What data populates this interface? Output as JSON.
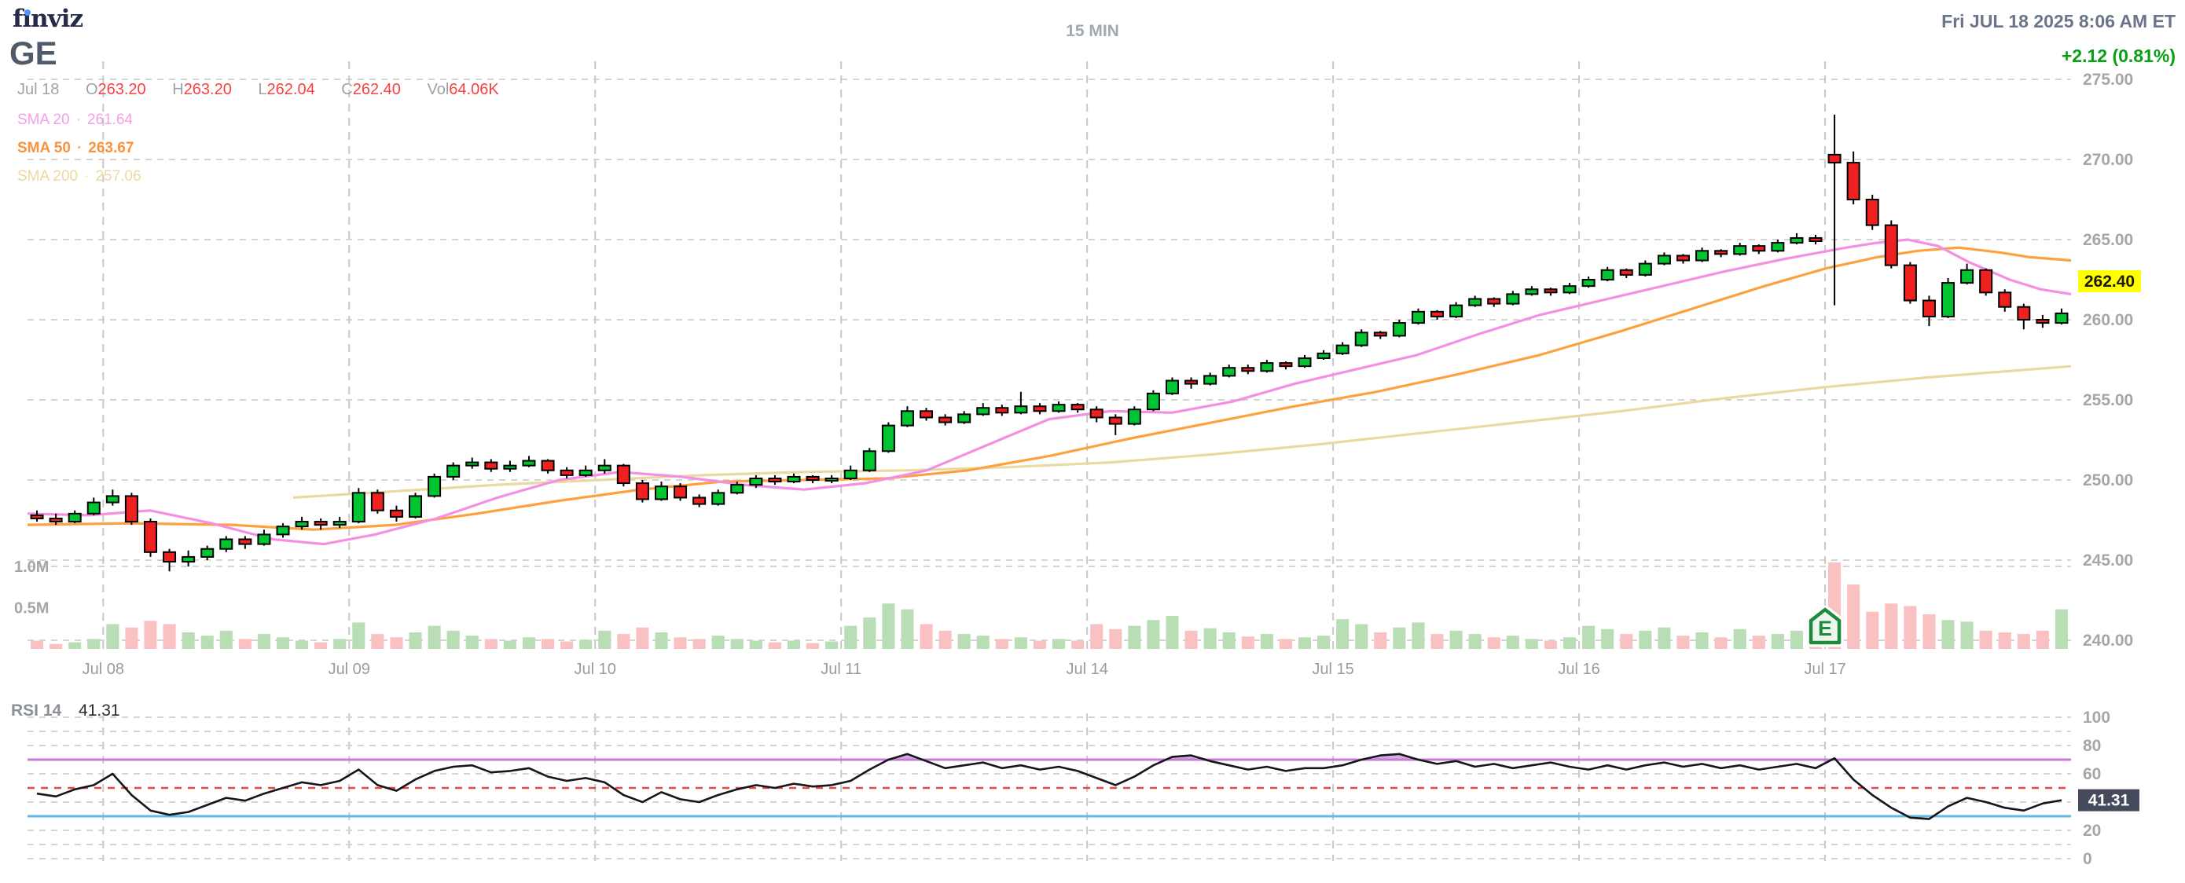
{
  "header": {
    "logo": {
      "part1": "f",
      "part2": "ı",
      "part3": "nviz"
    },
    "ticker": "GE",
    "timeframe": "15 MIN",
    "datetime": "Fri JUL 18 2025 8:06 AM ET",
    "change": "+2.12 (0.81%)",
    "quote": {
      "date": "Jul 18",
      "o_label": "O",
      "o": "263.20",
      "h_label": "H",
      "h": "263.20",
      "l_label": "L",
      "l": "262.04",
      "c_label": "C",
      "c": "262.40",
      "vol_label": "Vol",
      "vol": "64.06K"
    },
    "sma20_label": "SMA 20",
    "sma20_sep": "·",
    "sma20_value": "261.64",
    "sma50_label": "SMA 50",
    "sma50_sep": "·",
    "sma50_value": "263.67",
    "sma200_label": "SMA 200",
    "sma200_sep": "·",
    "sma200_value": "257.06"
  },
  "chart_data": {
    "type": "candlestick",
    "title": "GE 15 MIN intraday candlestick chart with volume and RSI",
    "price_axis": {
      "ticks": [
        275,
        270,
        265,
        260,
        255,
        250,
        245,
        240
      ],
      "current": 262.4,
      "current_label": "262.40"
    },
    "volume_axis": {
      "ticks": [
        {
          "label": "1.0M",
          "value": 1.0
        },
        {
          "label": "0.5M",
          "value": 0.5
        }
      ]
    },
    "x_axis": {
      "day_labels": [
        {
          "label": "Jul 08",
          "bar": 4
        },
        {
          "label": "Jul 09",
          "bar": 17
        },
        {
          "label": "Jul 10",
          "bar": 30
        },
        {
          "label": "Jul 11",
          "bar": 43
        },
        {
          "label": "Jul 14",
          "bar": 56
        },
        {
          "label": "Jul 15",
          "bar": 69
        },
        {
          "label": "Jul 16",
          "bar": 82
        },
        {
          "label": "Jul 17",
          "bar": 95
        }
      ]
    },
    "candles": [
      [
        247.8,
        248.1,
        247.4,
        247.6
      ],
      [
        247.6,
        247.9,
        247.2,
        247.4
      ],
      [
        247.4,
        248.1,
        247.3,
        247.9
      ],
      [
        247.9,
        248.9,
        247.8,
        248.6
      ],
      [
        248.6,
        249.4,
        248.4,
        249.0
      ],
      [
        249.0,
        249.2,
        247.2,
        247.4
      ],
      [
        247.4,
        247.6,
        245.2,
        245.5
      ],
      [
        245.5,
        245.7,
        244.3,
        244.9
      ],
      [
        244.9,
        245.6,
        244.6,
        245.2
      ],
      [
        245.2,
        245.9,
        245.0,
        245.7
      ],
      [
        245.7,
        246.5,
        245.5,
        246.3
      ],
      [
        246.3,
        246.5,
        245.7,
        246.0
      ],
      [
        246.0,
        246.9,
        245.9,
        246.6
      ],
      [
        246.6,
        247.3,
        246.4,
        247.1
      ],
      [
        247.1,
        247.7,
        246.9,
        247.4
      ],
      [
        247.4,
        247.6,
        246.9,
        247.2
      ],
      [
        247.2,
        247.7,
        247.0,
        247.4
      ],
      [
        247.4,
        249.5,
        247.3,
        249.2
      ],
      [
        249.2,
        249.4,
        247.9,
        248.1
      ],
      [
        248.1,
        248.4,
        247.4,
        247.7
      ],
      [
        247.7,
        249.2,
        247.6,
        249.0
      ],
      [
        249.0,
        250.4,
        248.9,
        250.2
      ],
      [
        250.2,
        251.1,
        250.0,
        250.9
      ],
      [
        250.9,
        251.4,
        250.7,
        251.1
      ],
      [
        251.1,
        251.3,
        250.5,
        250.7
      ],
      [
        250.7,
        251.2,
        250.5,
        250.9
      ],
      [
        250.9,
        251.5,
        250.8,
        251.2
      ],
      [
        251.2,
        251.3,
        250.4,
        250.6
      ],
      [
        250.6,
        250.8,
        250.1,
        250.3
      ],
      [
        250.3,
        250.9,
        250.2,
        250.6
      ],
      [
        250.6,
        251.3,
        250.4,
        250.9
      ],
      [
        250.9,
        251.0,
        249.6,
        249.8
      ],
      [
        249.8,
        250.0,
        248.6,
        248.8
      ],
      [
        248.8,
        249.9,
        248.7,
        249.6
      ],
      [
        249.6,
        249.8,
        248.7,
        248.9
      ],
      [
        248.9,
        249.1,
        248.3,
        248.5
      ],
      [
        248.5,
        249.4,
        248.4,
        249.2
      ],
      [
        249.2,
        249.9,
        249.1,
        249.7
      ],
      [
        249.7,
        250.3,
        249.5,
        250.1
      ],
      [
        250.1,
        250.3,
        249.7,
        249.9
      ],
      [
        249.9,
        250.4,
        249.8,
        250.2
      ],
      [
        250.2,
        250.3,
        249.8,
        250.0
      ],
      [
        250.0,
        250.3,
        249.8,
        250.1
      ],
      [
        250.1,
        250.9,
        250.0,
        250.6
      ],
      [
        250.6,
        252.0,
        250.5,
        251.8
      ],
      [
        251.8,
        253.6,
        251.7,
        253.4
      ],
      [
        253.4,
        254.6,
        253.3,
        254.3
      ],
      [
        254.3,
        254.5,
        253.7,
        253.9
      ],
      [
        253.9,
        254.1,
        253.4,
        253.6
      ],
      [
        253.6,
        254.3,
        253.5,
        254.1
      ],
      [
        254.1,
        254.8,
        254.0,
        254.5
      ],
      [
        254.5,
        254.7,
        254.0,
        254.2
      ],
      [
        254.2,
        255.5,
        254.1,
        254.6
      ],
      [
        254.6,
        254.8,
        254.1,
        254.3
      ],
      [
        254.3,
        254.9,
        254.2,
        254.7
      ],
      [
        254.7,
        254.8,
        254.2,
        254.4
      ],
      [
        254.4,
        254.6,
        253.6,
        253.9
      ],
      [
        253.9,
        254.1,
        252.8,
        253.5
      ],
      [
        253.5,
        254.6,
        253.4,
        254.4
      ],
      [
        254.4,
        255.6,
        254.3,
        255.4
      ],
      [
        255.4,
        256.4,
        255.3,
        256.2
      ],
      [
        256.2,
        256.4,
        255.7,
        256.0
      ],
      [
        256.0,
        256.7,
        255.9,
        256.5
      ],
      [
        256.5,
        257.2,
        256.4,
        257.0
      ],
      [
        257.0,
        257.2,
        256.6,
        256.8
      ],
      [
        256.8,
        257.5,
        256.7,
        257.3
      ],
      [
        257.3,
        257.4,
        256.9,
        257.1
      ],
      [
        257.1,
        257.8,
        257.0,
        257.6
      ],
      [
        257.6,
        258.1,
        257.5,
        257.9
      ],
      [
        257.9,
        258.6,
        257.8,
        258.4
      ],
      [
        258.4,
        259.4,
        258.3,
        259.2
      ],
      [
        259.2,
        259.3,
        258.8,
        259.0
      ],
      [
        259.0,
        260.0,
        258.9,
        259.8
      ],
      [
        259.8,
        260.7,
        259.7,
        260.5
      ],
      [
        260.5,
        260.6,
        260.0,
        260.2
      ],
      [
        260.2,
        261.1,
        260.1,
        260.9
      ],
      [
        260.9,
        261.5,
        260.8,
        261.3
      ],
      [
        261.3,
        261.4,
        260.8,
        261.0
      ],
      [
        261.0,
        261.8,
        260.9,
        261.6
      ],
      [
        261.6,
        262.1,
        261.5,
        261.9
      ],
      [
        261.9,
        262.0,
        261.5,
        261.7
      ],
      [
        261.7,
        262.3,
        261.6,
        262.1
      ],
      [
        262.1,
        262.7,
        262.0,
        262.5
      ],
      [
        262.5,
        263.3,
        262.4,
        263.1
      ],
      [
        263.1,
        263.2,
        262.6,
        262.8
      ],
      [
        262.8,
        263.7,
        262.7,
        263.5
      ],
      [
        263.5,
        264.2,
        263.4,
        264.0
      ],
      [
        264.0,
        264.1,
        263.5,
        263.7
      ],
      [
        263.7,
        264.5,
        263.6,
        264.3
      ],
      [
        264.3,
        264.4,
        263.9,
        264.1
      ],
      [
        264.1,
        264.8,
        264.0,
        264.6
      ],
      [
        264.6,
        264.7,
        264.1,
        264.3
      ],
      [
        264.3,
        265.0,
        264.2,
        264.8
      ],
      [
        264.8,
        265.4,
        264.7,
        265.1
      ],
      [
        265.1,
        265.3,
        264.7,
        264.9
      ],
      [
        270.3,
        272.8,
        260.9,
        269.8
      ],
      [
        269.8,
        270.5,
        267.2,
        267.5
      ],
      [
        267.5,
        267.8,
        265.6,
        265.9
      ],
      [
        265.9,
        266.2,
        263.2,
        263.4
      ],
      [
        263.4,
        263.6,
        261.0,
        261.2
      ],
      [
        261.2,
        261.5,
        259.6,
        260.2
      ],
      [
        260.2,
        262.6,
        260.1,
        262.3
      ],
      [
        262.3,
        263.5,
        262.2,
        263.1
      ],
      [
        263.1,
        263.2,
        261.5,
        261.7
      ],
      [
        261.7,
        261.9,
        260.5,
        260.8
      ],
      [
        260.8,
        261.0,
        259.4,
        260.0
      ],
      [
        260.0,
        260.3,
        259.5,
        259.8
      ],
      [
        259.8,
        260.7,
        259.7,
        260.4
      ]
    ],
    "volumes": [
      0.1,
      0.06,
      0.08,
      0.12,
      0.3,
      0.26,
      0.34,
      0.3,
      0.2,
      0.16,
      0.22,
      0.12,
      0.18,
      0.14,
      0.1,
      0.08,
      0.12,
      0.32,
      0.18,
      0.14,
      0.2,
      0.28,
      0.22,
      0.16,
      0.12,
      0.1,
      0.14,
      0.12,
      0.09,
      0.11,
      0.22,
      0.18,
      0.26,
      0.2,
      0.14,
      0.12,
      0.16,
      0.12,
      0.1,
      0.08,
      0.1,
      0.07,
      0.09,
      0.28,
      0.38,
      0.55,
      0.48,
      0.3,
      0.22,
      0.18,
      0.16,
      0.12,
      0.14,
      0.1,
      0.12,
      0.1,
      0.3,
      0.24,
      0.28,
      0.35,
      0.4,
      0.22,
      0.25,
      0.2,
      0.15,
      0.18,
      0.12,
      0.14,
      0.16,
      0.36,
      0.3,
      0.2,
      0.26,
      0.32,
      0.18,
      0.22,
      0.18,
      0.14,
      0.16,
      0.12,
      0.1,
      0.14,
      0.28,
      0.24,
      0.18,
      0.22,
      0.26,
      0.16,
      0.2,
      0.14,
      0.24,
      0.16,
      0.18,
      0.22,
      0.2,
      1.05,
      0.78,
      0.45,
      0.55,
      0.52,
      0.42,
      0.35,
      0.33,
      0.22,
      0.2,
      0.18,
      0.22,
      0.48
    ],
    "sma": {
      "sma20": {
        "name": "SMA 20",
        "current": 261.64,
        "points": [
          [
            0.0,
            247.9
          ],
          [
            0.03,
            247.8
          ],
          [
            0.06,
            248.1
          ],
          [
            0.09,
            247.3
          ],
          [
            0.12,
            246.3
          ],
          [
            0.145,
            246.0
          ],
          [
            0.17,
            246.6
          ],
          [
            0.2,
            247.6
          ],
          [
            0.23,
            248.9
          ],
          [
            0.26,
            250.0
          ],
          [
            0.29,
            250.5
          ],
          [
            0.32,
            250.2
          ],
          [
            0.35,
            249.7
          ],
          [
            0.38,
            249.4
          ],
          [
            0.41,
            249.8
          ],
          [
            0.44,
            250.6
          ],
          [
            0.47,
            252.2
          ],
          [
            0.5,
            253.8
          ],
          [
            0.53,
            254.3
          ],
          [
            0.56,
            254.2
          ],
          [
            0.59,
            254.9
          ],
          [
            0.62,
            256.0
          ],
          [
            0.65,
            256.9
          ],
          [
            0.68,
            257.8
          ],
          [
            0.71,
            259.1
          ],
          [
            0.74,
            260.3
          ],
          [
            0.77,
            261.2
          ],
          [
            0.8,
            262.1
          ],
          [
            0.83,
            263.0
          ],
          [
            0.86,
            263.8
          ],
          [
            0.89,
            264.5
          ],
          [
            0.905,
            264.8
          ],
          [
            0.92,
            265.0
          ],
          [
            0.935,
            264.6
          ],
          [
            0.95,
            263.6
          ],
          [
            0.97,
            262.5
          ],
          [
            0.985,
            261.9
          ],
          [
            1.0,
            261.6
          ]
        ]
      },
      "sma50": {
        "name": "SMA 50",
        "current": 263.67,
        "points": [
          [
            0.0,
            247.2
          ],
          [
            0.05,
            247.3
          ],
          [
            0.1,
            247.2
          ],
          [
            0.14,
            246.9
          ],
          [
            0.18,
            247.2
          ],
          [
            0.22,
            247.9
          ],
          [
            0.26,
            248.7
          ],
          [
            0.3,
            249.4
          ],
          [
            0.34,
            249.9
          ],
          [
            0.38,
            250.0
          ],
          [
            0.42,
            250.1
          ],
          [
            0.46,
            250.6
          ],
          [
            0.5,
            251.5
          ],
          [
            0.54,
            252.6
          ],
          [
            0.58,
            253.6
          ],
          [
            0.62,
            254.6
          ],
          [
            0.66,
            255.5
          ],
          [
            0.7,
            256.6
          ],
          [
            0.74,
            257.8
          ],
          [
            0.78,
            259.3
          ],
          [
            0.82,
            260.9
          ],
          [
            0.85,
            262.1
          ],
          [
            0.88,
            263.2
          ],
          [
            0.905,
            263.9
          ],
          [
            0.925,
            264.3
          ],
          [
            0.945,
            264.5
          ],
          [
            0.965,
            264.2
          ],
          [
            0.98,
            263.9
          ],
          [
            1.0,
            263.7
          ]
        ]
      },
      "sma200": {
        "name": "SMA 200",
        "current": 257.06,
        "points": [
          [
            0.13,
            248.9
          ],
          [
            0.18,
            249.3
          ],
          [
            0.23,
            249.7
          ],
          [
            0.28,
            250.0
          ],
          [
            0.33,
            250.3
          ],
          [
            0.38,
            250.5
          ],
          [
            0.43,
            250.6
          ],
          [
            0.48,
            250.8
          ],
          [
            0.53,
            251.1
          ],
          [
            0.58,
            251.6
          ],
          [
            0.63,
            252.2
          ],
          [
            0.68,
            252.9
          ],
          [
            0.73,
            253.6
          ],
          [
            0.78,
            254.3
          ],
          [
            0.83,
            255.1
          ],
          [
            0.88,
            255.8
          ],
          [
            0.93,
            256.4
          ],
          [
            1.0,
            257.1
          ]
        ]
      }
    },
    "rsi": {
      "period_label": "RSI 14",
      "current": "41.31",
      "current_value": 41.31,
      "levels": {
        "overbought": 70,
        "mid": 50,
        "oversold": 30
      },
      "axis_ticks": [
        100,
        80,
        60,
        20,
        0
      ],
      "grid_ticks": [
        100,
        90,
        80,
        60,
        40,
        20,
        10,
        0
      ],
      "values": [
        46,
        44,
        49,
        52,
        60,
        45,
        34,
        31,
        33,
        38,
        43,
        41,
        46,
        50,
        54,
        52,
        55,
        63,
        52,
        48,
        56,
        62,
        65,
        66,
        61,
        62,
        64,
        58,
        55,
        57,
        54,
        45,
        40,
        47,
        42,
        40,
        45,
        49,
        52,
        50,
        53,
        51,
        52,
        55,
        63,
        70,
        74,
        69,
        64,
        66,
        68,
        64,
        66,
        63,
        65,
        62,
        57,
        52,
        58,
        66,
        72,
        73,
        69,
        66,
        63,
        65,
        62,
        64,
        64,
        66,
        70,
        73,
        74,
        70,
        67,
        69,
        65,
        67,
        64,
        66,
        68,
        65,
        63,
        66,
        63,
        66,
        68,
        65,
        67,
        64,
        66,
        63,
        65,
        67,
        64,
        71,
        56,
        45,
        36,
        29,
        28,
        37,
        43,
        40,
        36,
        34,
        39,
        41.31
      ]
    },
    "events": [
      {
        "type": "earnings",
        "label": "E",
        "bar": 95
      }
    ],
    "colors": {
      "candle_up": "#00c430",
      "candle_down": "#ef2020",
      "candle_border": "#000000",
      "volume_up": "#b9ddb4",
      "volume_down": "#f9c1c1",
      "sma20": "#f48fe3",
      "sma50": "#fca13e",
      "sma200": "#ead9a2",
      "grid": "#d4d4d4",
      "day_grid": "#c9c9c9",
      "axis_text": "#a6a6a6",
      "date_text": "#9b9b9b",
      "price_badge_bg": "#ffff00",
      "price_badge_text": "#1a1a00",
      "rsi_line": "#15151a",
      "rsi_overbought": "#c97bd9",
      "rsi_mid": "#ee4444",
      "rsi_oversold": "#64b9e4",
      "rsi_fill": "#bf7fd0",
      "rsi_badge_bg": "#454b5c",
      "rsi_badge_text": "#ffffff",
      "earnings_badge_fill": "#eef7ee",
      "earnings_badge_stroke": "#1f8a3e"
    }
  }
}
